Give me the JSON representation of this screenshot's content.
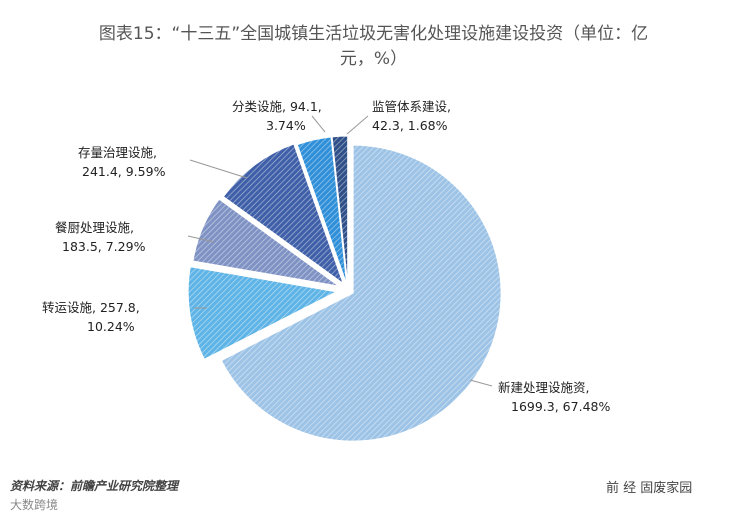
{
  "chart_data": {
    "type": "pie",
    "title": "图表15：“十三五”全国城镇生活垃圾无害化处理设施建设投资（单位：亿",
    "title_line2": "元，%）",
    "series": [
      {
        "name": "新建处理设施资",
        "value": 1699.3,
        "percent": "67.48%",
        "color": "#9dc3e6"
      },
      {
        "name": "转运设施",
        "value": 257.8,
        "percent": "10.24%",
        "color": "#5eb4e6"
      },
      {
        "name": "餐厨处理设施",
        "value": 183.5,
        "percent": "7.29%",
        "color": "#7f92c4"
      },
      {
        "name": "存量治理设施",
        "value": 241.4,
        "percent": "9.59%",
        "color": "#3f60a8"
      },
      {
        "name": "分类设施",
        "value": 94.1,
        "percent": "3.74%",
        "color": "#2f8fd8"
      },
      {
        "name": "监管体系建设",
        "value": 42.3,
        "percent": "1.68%",
        "color": "#2f4f88"
      }
    ],
    "labels": [
      {
        "line1": "新建处理设施资,",
        "line2": "1699.3, 67.48%"
      },
      {
        "line1": "转运设施, 257.8,",
        "line2": "10.24%"
      },
      {
        "line1": "餐厨处理设施,",
        "line2": "183.5, 7.29%"
      },
      {
        "line1": "存量治理设施,",
        "line2": "241.4, 9.59%"
      },
      {
        "line1": "分类设施, 94.1,",
        "line2": "3.74%"
      },
      {
        "line1": "监管体系建设,",
        "line2": "42.3, 1.68%"
      }
    ]
  },
  "footer": {
    "source": "资料来源：前瞻产业研究院整理",
    "watermark_left": "大数跨境",
    "watermark_right": "前 经 固废家园"
  }
}
